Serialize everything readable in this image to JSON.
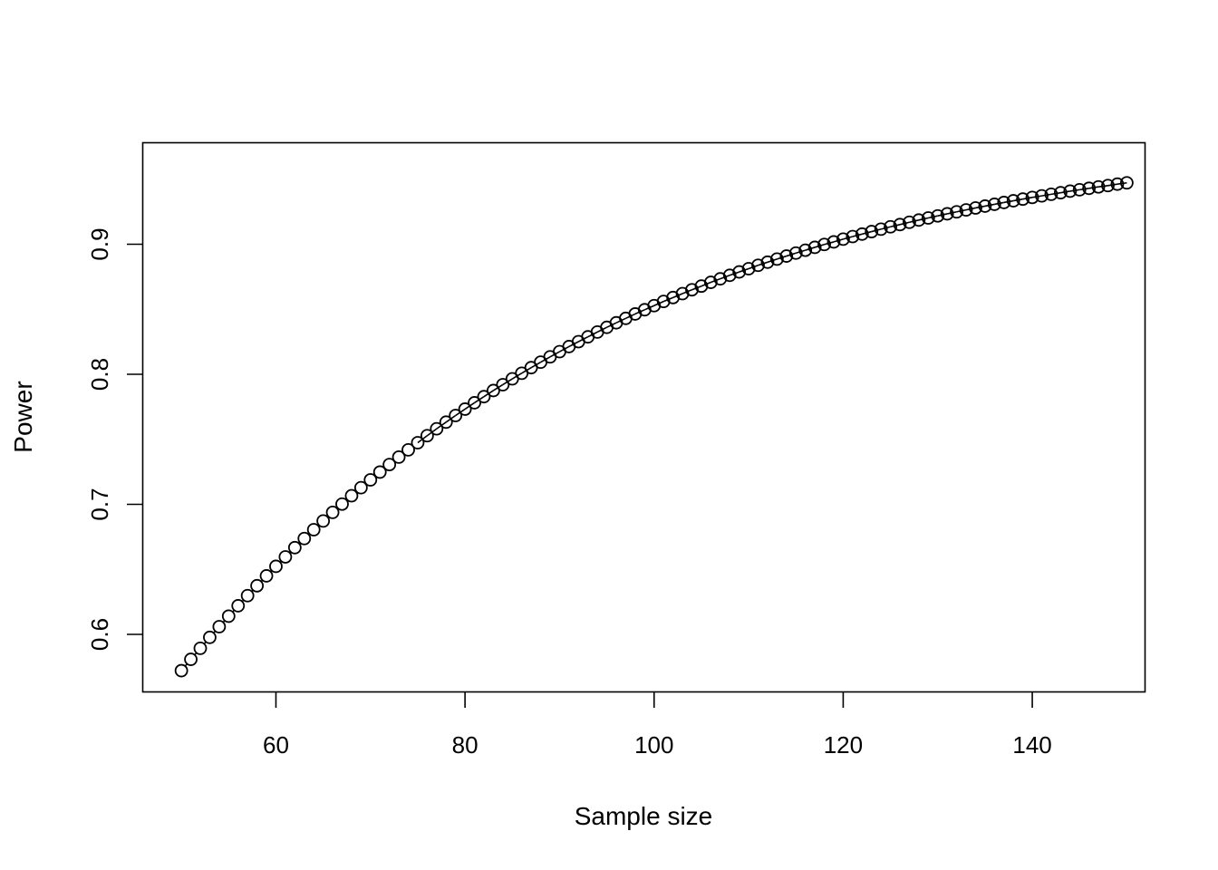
{
  "chart_data": {
    "type": "line",
    "markers": "open-circle",
    "xlabel": "Sample size",
    "ylabel": "Power",
    "xlim": [
      45.96,
      151.88
    ],
    "ylim": [
      0.5561,
      0.9777
    ],
    "x_ticks": [
      60,
      80,
      100,
      120,
      140
    ],
    "y_ticks": [
      0.6,
      0.7,
      0.8,
      0.9
    ],
    "x_tick_labels": [
      "60",
      "80",
      "100",
      "120",
      "140"
    ],
    "y_tick_labels": [
      "0.6",
      "0.7",
      "0.8",
      "0.9"
    ],
    "grid": false,
    "colors": {
      "line": "#000000",
      "marker_fill": "#ffffff",
      "frame": "#000000"
    },
    "series": [
      {
        "x": [
          50,
          51,
          52,
          53,
          54,
          55,
          56,
          57,
          58,
          59,
          60,
          61,
          62,
          63,
          64,
          65,
          66,
          67,
          68,
          69,
          70,
          71,
          72,
          73,
          74,
          75,
          76,
          77,
          78,
          79,
          80,
          81,
          82,
          83,
          84,
          85,
          86,
          87,
          88,
          89,
          90,
          91,
          92,
          93,
          94,
          95,
          96,
          97,
          98,
          99,
          100,
          101,
          102,
          103,
          104,
          105,
          106,
          107,
          108,
          109,
          110,
          111,
          112,
          113,
          114,
          115,
          116,
          117,
          118,
          119,
          120,
          121,
          122,
          123,
          124,
          125,
          126,
          127,
          128,
          129,
          130,
          131,
          132,
          133,
          134,
          135,
          136,
          137,
          138,
          139,
          140,
          141,
          142,
          143,
          144,
          145,
          146,
          147,
          148,
          149,
          150
        ],
        "y": [
          0.5721,
          0.5808,
          0.5893,
          0.5977,
          0.6059,
          0.614,
          0.622,
          0.6298,
          0.6374,
          0.645,
          0.6523,
          0.6596,
          0.6667,
          0.6737,
          0.6805,
          0.6872,
          0.6938,
          0.7002,
          0.7066,
          0.7128,
          0.7188,
          0.7248,
          0.7306,
          0.7363,
          0.7419,
          0.7474,
          0.7528,
          0.7581,
          0.7632,
          0.7683,
          0.7732,
          0.7781,
          0.7828,
          0.7875,
          0.792,
          0.7965,
          0.8008,
          0.8051,
          0.8093,
          0.8134,
          0.8174,
          0.8213,
          0.8251,
          0.8288,
          0.8325,
          0.8361,
          0.8396,
          0.843,
          0.8464,
          0.8496,
          0.8528,
          0.856,
          0.859,
          0.862,
          0.865,
          0.8678,
          0.8707,
          0.8734,
          0.8761,
          0.8787,
          0.8812,
          0.8838,
          0.8862,
          0.8886,
          0.8909,
          0.8932,
          0.8954,
          0.8976,
          0.8998,
          0.9018,
          0.9039,
          0.9059,
          0.9078,
          0.9097,
          0.9116,
          0.9134,
          0.9151,
          0.9169,
          0.9186,
          0.9202,
          0.9218,
          0.9234,
          0.9249,
          0.9264,
          0.9279,
          0.9293,
          0.9307,
          0.9321,
          0.9334,
          0.9347,
          0.936,
          0.9372,
          0.9384,
          0.9396,
          0.9408,
          0.9419,
          0.943,
          0.9441,
          0.9451,
          0.9462,
          0.9472
        ]
      }
    ]
  }
}
